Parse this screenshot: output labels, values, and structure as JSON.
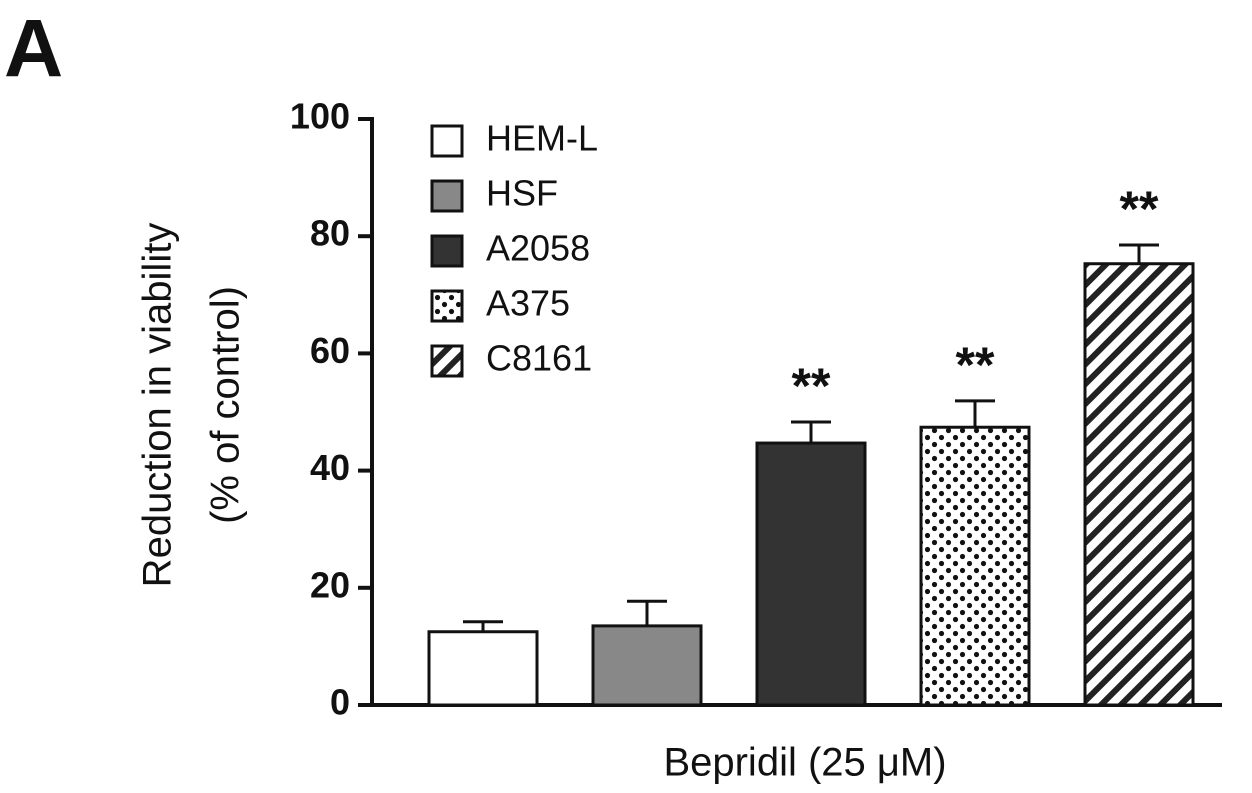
{
  "chart_data": {
    "type": "bar",
    "panel_label": "A",
    "ylabel": [
      "Reduction in viability",
      "(% of control)"
    ],
    "xlabel": "Bepridil (25 μM)",
    "ylim": [
      0,
      100
    ],
    "yticks": [
      0,
      20,
      40,
      60,
      80,
      100
    ],
    "series": [
      {
        "name": "HEM-L",
        "color": "#ffffff",
        "pattern": "solid",
        "values": [
          12.5
        ],
        "errors": [
          1.7
        ]
      },
      {
        "name": "HSF",
        "color": "#888888",
        "pattern": "solid",
        "values": [
          13.5
        ],
        "errors": [
          4.2
        ]
      },
      {
        "name": "A2058",
        "color": "#333333",
        "pattern": "solid",
        "values": [
          44.7
        ],
        "errors": [
          3.6
        ],
        "annotation": "**"
      },
      {
        "name": "A375",
        "color": "#ffffff",
        "pattern": "dots",
        "values": [
          47.4
        ],
        "errors": [
          4.5
        ],
        "annotation": "**"
      },
      {
        "name": "C8161",
        "color": "#ffffff",
        "pattern": "stripes",
        "values": [
          75.3
        ],
        "errors": [
          3.2
        ],
        "annotation": "**"
      }
    ]
  }
}
